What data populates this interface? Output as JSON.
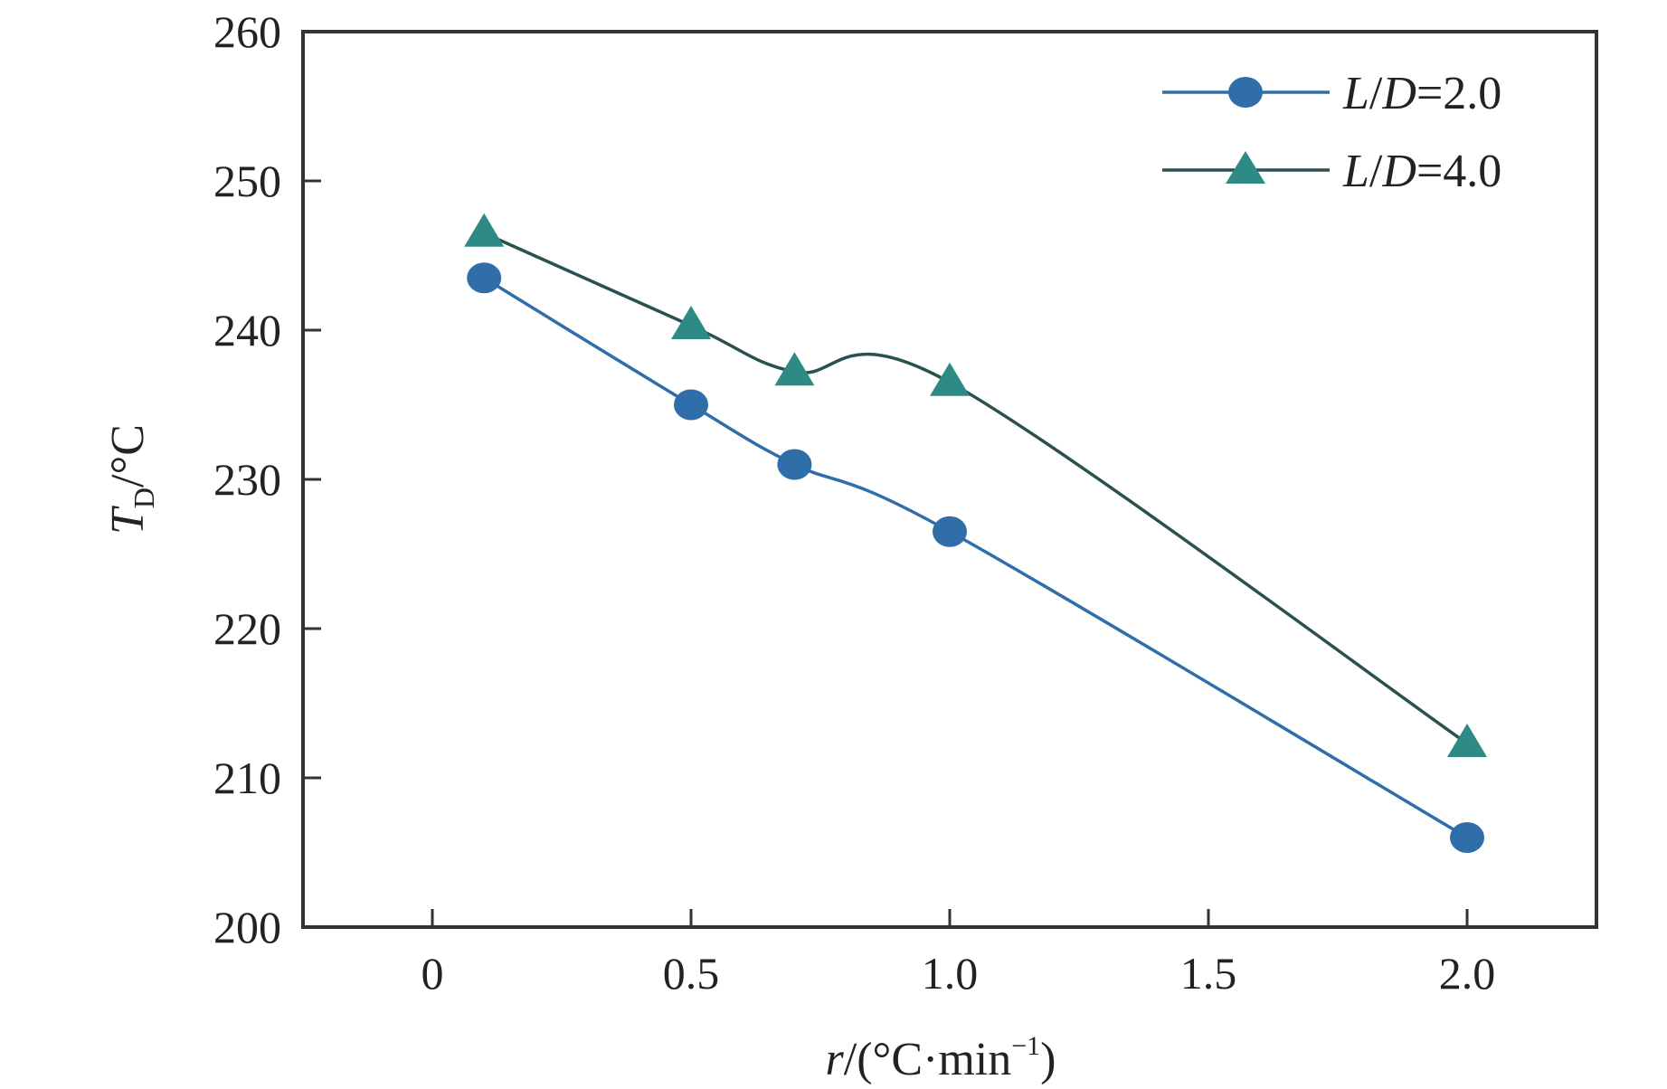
{
  "chart_data": {
    "type": "line",
    "title": "",
    "xlabel": {
      "var": "r",
      "unit": "/(°C·min",
      "exp": "−1",
      "close": ")"
    },
    "ylabel": {
      "var": "T",
      "sub": "D",
      "unit": "/°C"
    },
    "xlim": [
      -0.25,
      2.25
    ],
    "ylim": [
      200,
      260
    ],
    "xticks": [
      0,
      0.5,
      1.0,
      1.5,
      2.0
    ],
    "xtick_labels": [
      "0",
      "0.5",
      "1.0",
      "1.5",
      "2.0"
    ],
    "yticks": [
      200,
      210,
      220,
      230,
      240,
      250,
      260
    ],
    "ytick_labels": [
      "200",
      "210",
      "220",
      "230",
      "240",
      "250",
      "260"
    ],
    "grid": false,
    "legend_position": "top-right",
    "series": [
      {
        "name": "L/D=2.0",
        "label_var1": "L",
        "label_sep": "/",
        "label_var2": "D",
        "label_val": "=2.0",
        "marker": "circle",
        "color": "#2f6ea8",
        "x": [
          0.1,
          0.5,
          0.7,
          1.0,
          2.0
        ],
        "y": [
          243.5,
          235.0,
          231.0,
          226.5,
          206.0
        ]
      },
      {
        "name": "L/D=4.0",
        "label_var1": "L",
        "label_sep": "/",
        "label_var2": "D",
        "label_val": "=4.0",
        "marker": "triangle",
        "color": "#2d8a85",
        "line_color": "#2a5050",
        "x": [
          0.1,
          0.5,
          0.7,
          1.0,
          2.0
        ],
        "y": [
          246.5,
          240.3,
          237.2,
          236.5,
          212.3
        ]
      }
    ]
  }
}
